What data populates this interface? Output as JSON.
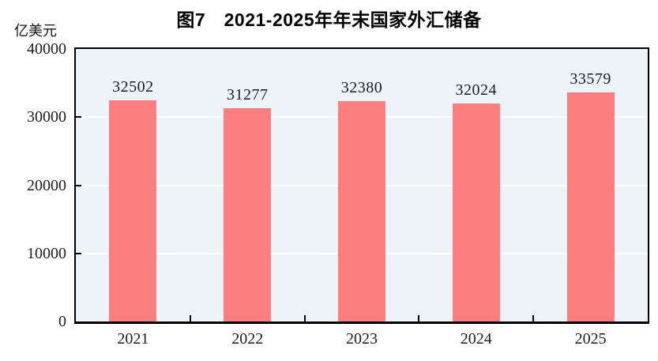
{
  "chart_data": {
    "type": "bar",
    "title": "图7　2021-2025年年末国家外汇储备",
    "unit_label": "亿美元",
    "categories": [
      "2021",
      "2022",
      "2023",
      "2024",
      "2025"
    ],
    "values": [
      32502,
      31277,
      32380,
      32024,
      33579
    ],
    "value_labels": [
      "32502",
      "31277",
      "32380",
      "32024",
      "33579"
    ],
    "ylim": [
      0,
      40000
    ],
    "yticks": [
      0,
      10000,
      20000,
      30000,
      40000
    ],
    "ytick_labels": [
      "0",
      "10000",
      "20000",
      "30000",
      "40000"
    ],
    "grid": "horizontal white lines at 10000/20000/30000",
    "legend": "none",
    "colors": {
      "bar": "#FD7E7E",
      "plot_background": "#EEF3F8",
      "gridline": "#FFFFFF",
      "axis_frame": "#000000",
      "label_text": "#1C1C26",
      "title_text": "#000000",
      "page_background": "#FFFFFF"
    }
  }
}
